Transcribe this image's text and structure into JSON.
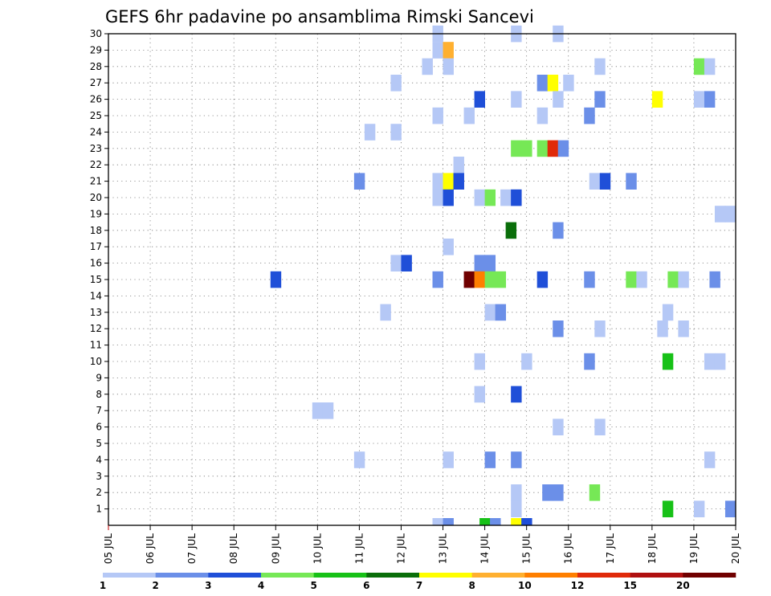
{
  "chart_data": {
    "type": "heatmap",
    "title": "GEFS 6hr padavine po ansamblima Rimski Sancevi",
    "xlabel": "",
    "ylabel": "",
    "x_ticks": [
      "05 JUL",
      "06 JUL",
      "07 JUL",
      "08 JUL",
      "09 JUL",
      "10 JUL",
      "11 JUL",
      "12 JUL",
      "13 JUL",
      "14 JUL",
      "15 JUL",
      "16 JUL",
      "17 JUL",
      "18 JUL",
      "19 JUL",
      "20 JUL"
    ],
    "y_ticks": [
      1,
      2,
      3,
      4,
      5,
      6,
      7,
      8,
      9,
      10,
      11,
      12,
      13,
      14,
      15,
      16,
      17,
      18,
      19,
      20,
      21,
      22,
      23,
      24,
      25,
      26,
      27,
      28,
      29,
      30
    ],
    "xlim": [
      0,
      60
    ],
    "ylim": [
      0,
      30
    ],
    "x_unit": "6-hour step from 05 JUL 00z",
    "y_unit": "ensemble member",
    "grid": true,
    "legend_position": "bottom",
    "legend_labels": [
      "1",
      "2",
      "3",
      "4",
      "5",
      "6",
      "7",
      "8",
      "10",
      "12",
      "15",
      "20"
    ],
    "color_scale": [
      "#b5c8f6",
      "#6b8fe8",
      "#1f4fd8",
      "#76e856",
      "#17c117",
      "#0a6e0a",
      "#ffff00",
      "#ffb030",
      "#ff7f00",
      "#e02a0a",
      "#b01010",
      "#700000"
    ],
    "cells": [
      {
        "x": 31.5,
        "y": 30,
        "v": 1
      },
      {
        "x": 39,
        "y": 30,
        "v": 1
      },
      {
        "x": 43,
        "y": 30,
        "v": 1
      },
      {
        "x": 31.5,
        "y": 29,
        "v": 1
      },
      {
        "x": 32.5,
        "y": 29,
        "v": 8
      },
      {
        "x": 30.5,
        "y": 28,
        "v": 1
      },
      {
        "x": 32.5,
        "y": 28,
        "v": 1
      },
      {
        "x": 47,
        "y": 28,
        "v": 1
      },
      {
        "x": 56.5,
        "y": 28,
        "v": 4
      },
      {
        "x": 57.5,
        "y": 28,
        "v": 1
      },
      {
        "x": 27.5,
        "y": 27,
        "v": 1
      },
      {
        "x": 41.5,
        "y": 27,
        "v": 2
      },
      {
        "x": 42.5,
        "y": 27,
        "v": 7
      },
      {
        "x": 44,
        "y": 27,
        "v": 1
      },
      {
        "x": 35.5,
        "y": 26,
        "v": 3
      },
      {
        "x": 39,
        "y": 26,
        "v": 1
      },
      {
        "x": 43,
        "y": 26,
        "v": 1
      },
      {
        "x": 47,
        "y": 26,
        "v": 2
      },
      {
        "x": 52.5,
        "y": 26,
        "v": 7
      },
      {
        "x": 56.5,
        "y": 26,
        "v": 1
      },
      {
        "x": 57.5,
        "y": 26,
        "v": 2
      },
      {
        "x": 31.5,
        "y": 25,
        "v": 1
      },
      {
        "x": 34.5,
        "y": 25,
        "v": 1
      },
      {
        "x": 41.5,
        "y": 25,
        "v": 1
      },
      {
        "x": 46,
        "y": 25,
        "v": 2
      },
      {
        "x": 25,
        "y": 24,
        "v": 1
      },
      {
        "x": 27.5,
        "y": 24,
        "v": 1
      },
      {
        "x": 39,
        "y": 23,
        "v": 4
      },
      {
        "x": 40,
        "y": 23,
        "v": 4
      },
      {
        "x": 41.5,
        "y": 23,
        "v": 4
      },
      {
        "x": 42.5,
        "y": 23,
        "v": 12
      },
      {
        "x": 43.5,
        "y": 23,
        "v": 2
      },
      {
        "x": 33.5,
        "y": 22,
        "v": 1
      },
      {
        "x": 24,
        "y": 21,
        "v": 2
      },
      {
        "x": 31.5,
        "y": 21,
        "v": 1
      },
      {
        "x": 32.5,
        "y": 21,
        "v": 7
      },
      {
        "x": 33.5,
        "y": 21,
        "v": 3
      },
      {
        "x": 46.5,
        "y": 21,
        "v": 1
      },
      {
        "x": 47.5,
        "y": 21,
        "v": 3
      },
      {
        "x": 50,
        "y": 21,
        "v": 2
      },
      {
        "x": 31.5,
        "y": 20,
        "v": 1
      },
      {
        "x": 32.5,
        "y": 20,
        "v": 3
      },
      {
        "x": 35.5,
        "y": 20,
        "v": 1
      },
      {
        "x": 36.5,
        "y": 20,
        "v": 4
      },
      {
        "x": 38,
        "y": 20,
        "v": 1
      },
      {
        "x": 39,
        "y": 20,
        "v": 3
      },
      {
        "x": 58.5,
        "y": 19,
        "v": 1
      },
      {
        "x": 59.5,
        "y": 19,
        "v": 1
      },
      {
        "x": 38.5,
        "y": 18,
        "v": 6
      },
      {
        "x": 43,
        "y": 18,
        "v": 2
      },
      {
        "x": 32.5,
        "y": 17,
        "v": 1
      },
      {
        "x": 27.5,
        "y": 16,
        "v": 1
      },
      {
        "x": 28.5,
        "y": 16,
        "v": 3
      },
      {
        "x": 35.5,
        "y": 16,
        "v": 2
      },
      {
        "x": 36.5,
        "y": 16,
        "v": 2
      },
      {
        "x": 16,
        "y": 15,
        "v": 3
      },
      {
        "x": 31.5,
        "y": 15,
        "v": 2
      },
      {
        "x": 34.5,
        "y": 15,
        "v": 20
      },
      {
        "x": 35.5,
        "y": 15,
        "v": 10
      },
      {
        "x": 36.5,
        "y": 15,
        "v": 4
      },
      {
        "x": 37.5,
        "y": 15,
        "v": 4
      },
      {
        "x": 41.5,
        "y": 15,
        "v": 3
      },
      {
        "x": 46,
        "y": 15,
        "v": 2
      },
      {
        "x": 50,
        "y": 15,
        "v": 4
      },
      {
        "x": 51,
        "y": 15,
        "v": 1
      },
      {
        "x": 54,
        "y": 15,
        "v": 4
      },
      {
        "x": 55,
        "y": 15,
        "v": 1
      },
      {
        "x": 58,
        "y": 15,
        "v": 2
      },
      {
        "x": 26.5,
        "y": 13,
        "v": 1
      },
      {
        "x": 36.5,
        "y": 13,
        "v": 1
      },
      {
        "x": 37.5,
        "y": 13,
        "v": 2
      },
      {
        "x": 53.5,
        "y": 13,
        "v": 1
      },
      {
        "x": 43,
        "y": 12,
        "v": 2
      },
      {
        "x": 47,
        "y": 12,
        "v": 1
      },
      {
        "x": 53,
        "y": 12,
        "v": 1
      },
      {
        "x": 55,
        "y": 12,
        "v": 1
      },
      {
        "x": 35.5,
        "y": 10,
        "v": 1
      },
      {
        "x": 40,
        "y": 10,
        "v": 1
      },
      {
        "x": 46,
        "y": 10,
        "v": 2
      },
      {
        "x": 53.5,
        "y": 10,
        "v": 5
      },
      {
        "x": 57.5,
        "y": 10,
        "v": 1
      },
      {
        "x": 58.5,
        "y": 10,
        "v": 1
      },
      {
        "x": 35.5,
        "y": 8,
        "v": 1
      },
      {
        "x": 39,
        "y": 8,
        "v": 3
      },
      {
        "x": 20,
        "y": 7,
        "v": 1
      },
      {
        "x": 21,
        "y": 7,
        "v": 1
      },
      {
        "x": 43,
        "y": 6,
        "v": 1
      },
      {
        "x": 47,
        "y": 6,
        "v": 1
      },
      {
        "x": 24,
        "y": 4,
        "v": 1
      },
      {
        "x": 32.5,
        "y": 4,
        "v": 1
      },
      {
        "x": 36.5,
        "y": 4,
        "v": 2
      },
      {
        "x": 39,
        "y": 4,
        "v": 2
      },
      {
        "x": 57.5,
        "y": 4,
        "v": 1
      },
      {
        "x": 39,
        "y": 2,
        "v": 1
      },
      {
        "x": 42,
        "y": 2,
        "v": 2
      },
      {
        "x": 43,
        "y": 2,
        "v": 2
      },
      {
        "x": 46.5,
        "y": 2,
        "v": 4
      },
      {
        "x": 39,
        "y": 1,
        "v": 1
      },
      {
        "x": 53.5,
        "y": 1,
        "v": 5
      },
      {
        "x": 56.5,
        "y": 1,
        "v": 1
      },
      {
        "x": 59.5,
        "y": 1,
        "v": 2
      }
    ],
    "bottom_strip": [
      {
        "x": 31.5,
        "v": 1
      },
      {
        "x": 32.5,
        "v": 2
      },
      {
        "x": 36,
        "v": 5
      },
      {
        "x": 37,
        "v": 2
      },
      {
        "x": 39,
        "v": 7
      },
      {
        "x": 40,
        "v": 3
      }
    ]
  }
}
